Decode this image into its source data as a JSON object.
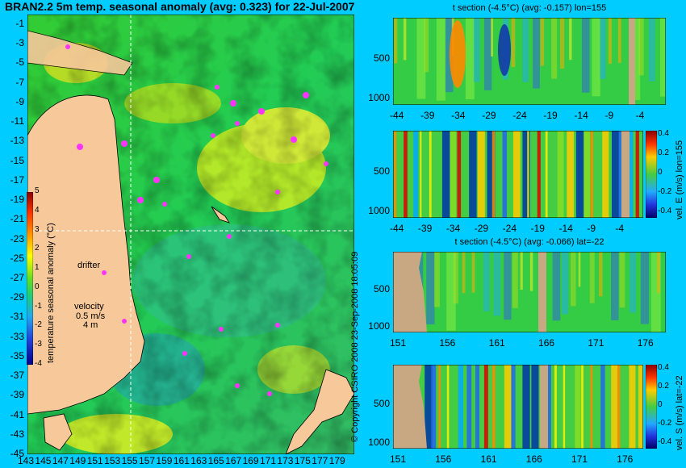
{
  "title": "BRAN2.2 5m temp. seasonal anomaly (avg: 0.323) for 22-Jul-2007",
  "map": {
    "lat_ticks": [
      "-1",
      "-3",
      "-5",
      "-7",
      "-9",
      "-11",
      "-13",
      "-15",
      "-17",
      "-19",
      "-21",
      "-23",
      "-25",
      "-27",
      "-29",
      "-31",
      "-33",
      "-35",
      "-37",
      "-39",
      "-41",
      "-43",
      "-45"
    ],
    "lon_ticks": [
      "143",
      "145",
      "147",
      "149",
      "151",
      "153",
      "155",
      "157",
      "159",
      "161",
      "163",
      "165",
      "167",
      "169",
      "171",
      "173",
      "175",
      "177",
      "179"
    ],
    "drifter_label": "drifter",
    "velocity_label": "velocity",
    "velocity_value": "0.5 m/s",
    "velocity_value2": "4 m",
    "colorbar_title": "temperature seasonal anomaly (°C)",
    "colorbar_ticks": [
      "5",
      "4",
      "3",
      "2",
      "1",
      "0",
      "-1",
      "-2",
      "-3",
      "-4"
    ]
  },
  "side_text": "© Copyright CSIRO 2008   23-Sep-2008 18:05:09",
  "panels": [
    {
      "title": "t section (-4.5°C) (avg: -0.157) lon=155",
      "x_ticks": [
        "-44",
        "-39",
        "-34",
        "-29",
        "-24",
        "-19",
        "-14",
        "-9",
        "-4"
      ],
      "y_ticks": [
        "500",
        "1000"
      ],
      "side_label": ""
    },
    {
      "title": "",
      "x_ticks": [
        "-44",
        "-39",
        "-34",
        "-29",
        "-24",
        "-19",
        "-14",
        "-9",
        "-4"
      ],
      "y_ticks": [
        "500",
        "1000"
      ],
      "side_label": "vel. E (m/s)  lon=155",
      "colorbar_ticks": [
        "0.4",
        "0.2",
        "0",
        "-0.2",
        "-0.4"
      ]
    },
    {
      "title": "t section (-4.5°C) (avg: -0.066) lat=-22",
      "x_ticks": [
        "151",
        "156",
        "161",
        "166",
        "171",
        "176"
      ],
      "y_ticks": [
        "500",
        "1000"
      ],
      "side_label": ""
    },
    {
      "title": "",
      "x_ticks": [
        "151",
        "156",
        "161",
        "166",
        "171",
        "176"
      ],
      "y_ticks": [
        "500",
        "1000"
      ],
      "side_label": "vel. S (m/s)  lat=-22",
      "colorbar_ticks": [
        "0.4",
        "0.2",
        "0",
        "-0.2",
        "-0.4"
      ]
    }
  ],
  "chart_data": [
    {
      "type": "heatmap",
      "title": "BRAN2.2 5m temp. seasonal anomaly (avg: 0.323) for 22-Jul-2007",
      "xlim": [
        143,
        180
      ],
      "ylim": [
        -45,
        0
      ],
      "clim": [
        -4,
        5
      ]
    },
    {
      "type": "heatmap",
      "title": "t section (-4.5°C) (avg: -0.157) lon=155",
      "xlim": [
        -45,
        -1
      ],
      "ylim": [
        1000,
        0
      ]
    },
    {
      "type": "heatmap",
      "ylabel": "vel. E (m/s)  lon=155",
      "xlim": [
        -45,
        -1
      ],
      "ylim": [
        1000,
        0
      ],
      "clim": [
        -0.4,
        0.4
      ]
    },
    {
      "type": "heatmap",
      "title": "t section (-4.5°C) (avg: -0.066) lat=-22",
      "xlim": [
        150,
        180
      ],
      "ylim": [
        1000,
        0
      ]
    },
    {
      "type": "heatmap",
      "ylabel": "vel. S (m/s)  lat=-22",
      "xlim": [
        150,
        180
      ],
      "ylim": [
        1000,
        0
      ],
      "clim": [
        -0.4,
        0.4
      ]
    }
  ]
}
